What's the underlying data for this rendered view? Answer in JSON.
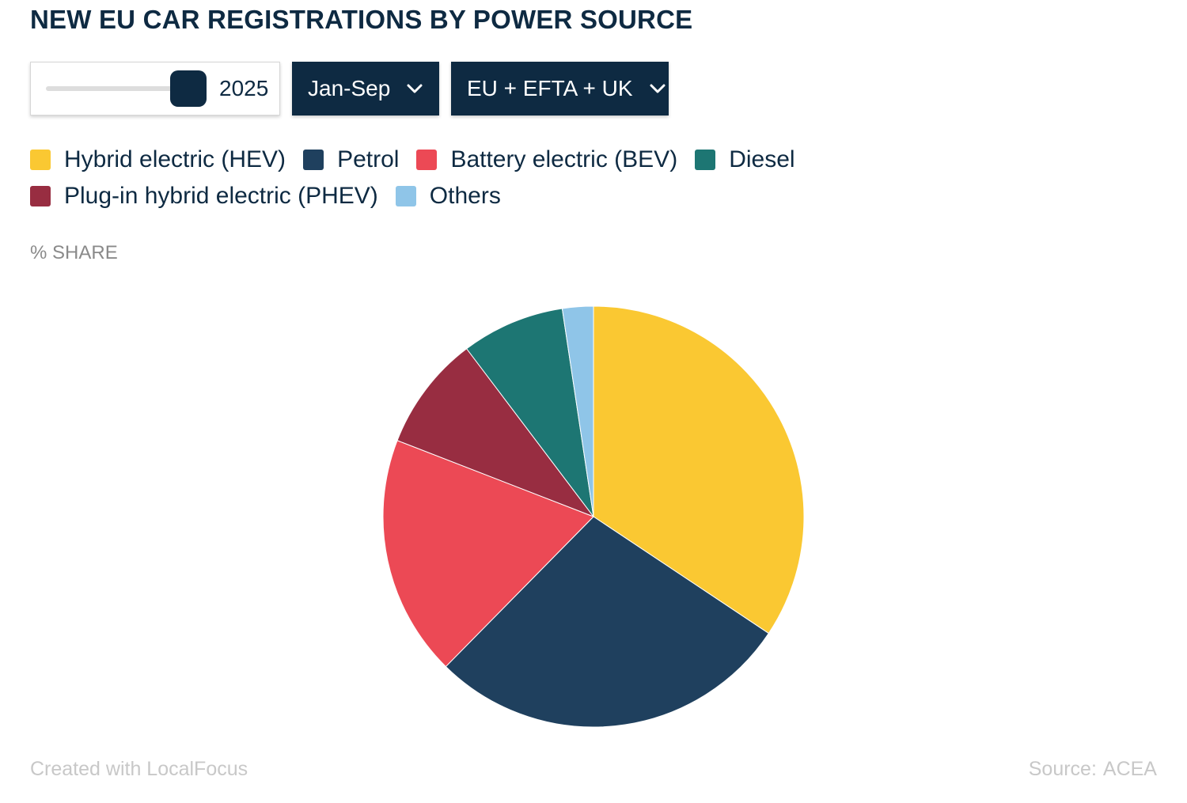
{
  "title": "NEW EU CAR REGISTRATIONS BY POWER SOURCE",
  "controls": {
    "year_slider_value": "2025",
    "period_dropdown_label": "Jan-Sep",
    "region_dropdown_label": "EU + EFTA + UK"
  },
  "unit_label": "% SHARE",
  "footer": {
    "credit": "Created with LocalFocus",
    "source_label": "Source:",
    "source_value": "ACEA"
  },
  "chart_data": {
    "type": "pie",
    "title": "NEW EU CAR REGISTRATIONS BY POWER SOURCE",
    "unit": "% SHARE",
    "legend_placement": "top",
    "slices": [
      {
        "name": "Hybrid electric (HEV)",
        "value": 34.7,
        "color": "#fac832"
      },
      {
        "name": "Petrol",
        "value": 28.3,
        "color": "#1f405e"
      },
      {
        "name": "Battery electric (BEV)",
        "value": 18.7,
        "color": "#ec4955"
      },
      {
        "name": "Plug-in hybrid electric (PHEV)",
        "value": 8.9,
        "color": "#982d41"
      },
      {
        "name": "Diesel",
        "value": 8.0,
        "color": "#1d7673"
      },
      {
        "name": "Others",
        "value": 2.4,
        "color": "#8fc5e8"
      }
    ],
    "legend_order": [
      "Hybrid electric (HEV)",
      "Petrol",
      "Battery electric (BEV)",
      "Diesel",
      "Plug-in hybrid electric (PHEV)",
      "Others"
    ]
  }
}
